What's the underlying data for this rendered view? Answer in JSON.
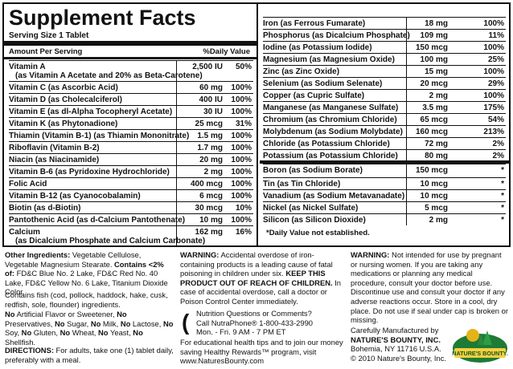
{
  "title": "Supplement Facts",
  "serving": "Serving Size 1 Tablet",
  "header": {
    "amount": "Amount Per Serving",
    "dv": "%Daily Value"
  },
  "left_rows": [
    {
      "name": "Vitamin A",
      "sub": "(as Vitamin A Acetate and 20% as Beta-Carotene)",
      "amount": "2,500 IU",
      "dv": "50%"
    },
    {
      "name": "Vitamin C (as Ascorbic Acid)",
      "amount": "60 mg",
      "dv": "100%"
    },
    {
      "name": "Vitamin D (as Cholecalciferol)",
      "amount": "400 IU",
      "dv": "100%"
    },
    {
      "name": "Vitamin E (as dl-Alpha Tocopheryl Acetate)",
      "amount": "30 IU",
      "dv": "100%"
    },
    {
      "name": "Vitamin K (as Phytonadione)",
      "amount": "25 mcg",
      "dv": "31%"
    },
    {
      "name": "Thiamin (Vitamin B-1) (as Thiamin Mononitrate)",
      "amount": "1.5 mg",
      "dv": "100%"
    },
    {
      "name": "Riboflavin (Vitamin B-2)",
      "amount": "1.7 mg",
      "dv": "100%"
    },
    {
      "name": "Niacin (as Niacinamide)",
      "amount": "20 mg",
      "dv": "100%"
    },
    {
      "name": "Vitamin B-6 (as Pyridoxine Hydrochloride)",
      "amount": "2 mg",
      "dv": "100%"
    },
    {
      "name": "Folic Acid",
      "amount": "400 mcg",
      "dv": "100%"
    },
    {
      "name": "Vitamin B-12 (as Cyanocobalamin)",
      "amount": "6 mcg",
      "dv": "100%"
    },
    {
      "name": "Biotin (as d-Biotin)",
      "amount": "30 mcg",
      "dv": "10%"
    },
    {
      "name": "Pantothenic Acid (as d-Calcium Pantothenate)",
      "amount": "10 mg",
      "dv": "100%"
    },
    {
      "name": "Calcium",
      "sub": "(as Dicalcium Phosphate and Calcium Carbonate)",
      "amount": "162 mg",
      "dv": "16%"
    }
  ],
  "right_rows": [
    {
      "name": "Iron (as Ferrous Fumarate)",
      "amount": "18 mg",
      "dv": "100%"
    },
    {
      "name": "Phosphorus (as Dicalcium Phosphate)",
      "amount": "109 mg",
      "dv": "11%"
    },
    {
      "name": "Iodine (as Potassium Iodide)",
      "amount": "150 mcg",
      "dv": "100%"
    },
    {
      "name": "Magnesium (as Magnesium Oxide)",
      "amount": "100 mg",
      "dv": "25%"
    },
    {
      "name": "Zinc (as Zinc Oxide)",
      "amount": "15 mg",
      "dv": "100%"
    },
    {
      "name": "Selenium (as Sodium Selenate)",
      "amount": "20 mcg",
      "dv": "29%"
    },
    {
      "name": "Copper (as Cupric Sulfate)",
      "amount": "2 mg",
      "dv": "100%"
    },
    {
      "name": "Manganese (as Manganese Sulfate)",
      "amount": "3.5 mg",
      "dv": "175%"
    },
    {
      "name": "Chromium (as Chromium Chloride)",
      "amount": "65 mcg",
      "dv": "54%"
    },
    {
      "name": "Molybdenum (as Sodium Molybdate)",
      "amount": "160 mcg",
      "dv": "213%"
    },
    {
      "name": "Chloride (as Potassium Chloride)",
      "amount": "72 mg",
      "dv": "2%"
    },
    {
      "name": "Potassium (as Potassium Chloride)",
      "amount": "80 mg",
      "dv": "2%"
    },
    {
      "name": "Boron (as Sodium Borate)",
      "amount": "150 mcg",
      "dv": "*"
    },
    {
      "name": "Tin (as Tin Chloride)",
      "amount": "10 mcg",
      "dv": "*"
    },
    {
      "name": "Vanadium (as Sodium Metavanadate)",
      "amount": "10 mcg",
      "dv": "*"
    },
    {
      "name": "Nickel (as Nickel Sulfate)",
      "amount": "5 mcg",
      "dv": "*"
    },
    {
      "name": "Silicon (as Silicon Dioxide)",
      "amount": "2 mg",
      "dv": "*"
    }
  ],
  "footnote": "*Daily Value not established.",
  "ingredients_label": "Other Ingredients:",
  "ingredients_text": "Vegetable Cellulose, Vegetable Magnesium Stearate.",
  "contains_label": "Contains <2% of:",
  "contains_text": "FD&C Blue No. 2 Lake, FD&C Red No. 40 Lake, FD&C Yellow No. 6 Lake, Titanium Dioxide Color.",
  "fish": "Contains fish (cod, pollock, haddock, hake, cusk, redfish, sole, flounder) ingredients.",
  "free": [
    {
      "no": "No",
      "text": " Artificial Flavor or Sweetener, "
    },
    {
      "no": "No",
      "text": " Preservatives, "
    },
    {
      "no": "No",
      "text": " Sugar, "
    },
    {
      "no": "No",
      "text": " Milk, "
    },
    {
      "no": "No",
      "text": " Lactose, "
    },
    {
      "no": "No",
      "text": " Soy, "
    },
    {
      "no": "No",
      "text": " Gluten, "
    },
    {
      "no": "No",
      "text": " Wheat, "
    },
    {
      "no": "No",
      "text": " Yeast, "
    },
    {
      "no": "No",
      "text": " Shellfish."
    }
  ],
  "directions_label": "DIRECTIONS:",
  "directions_text": "For adults, take one (1) tablet daily, preferably with a meal.",
  "warning1_label": "WARNING:",
  "warning1_text": "Accidental overdose of iron-containing products is a leading cause of fatal poisoning in children under six.",
  "warning1_bold": "KEEP THIS PRODUCT OUT OF REACH OF CHILDREN.",
  "warning1_tail": "In case of accidental overdose, call a doctor or Poison Control Center immediately.",
  "warning2_label": "WARNING:",
  "warning2_text": "Not intended for use by pregnant or nursing women. If you are taking any medications or planning any medical procedure, consult your doctor before use. Discontinue use and consult your doctor if any adverse reactions occur. Store in a cool, dry place. Do not use if seal under cap is broken or missing.",
  "nutraphone": [
    "Nutrition Questions or Comments?",
    "Call NutraPhone® 1-800-433-2990",
    "Mon. - Fri. 9 AM - 7 PM ET"
  ],
  "tips": "For educational health tips and to join our money saving Healthy Rewards™ program, visit www.NaturesBounty.com",
  "manuf": [
    "Carefully Manufactured by",
    "NATURE'S BOUNTY, INC.",
    "Bohemia, NY  11716 U.S.A.",
    "© 2010 Nature's Bounty, Inc."
  ],
  "logo_text": "NATURE'S BOUNTY."
}
